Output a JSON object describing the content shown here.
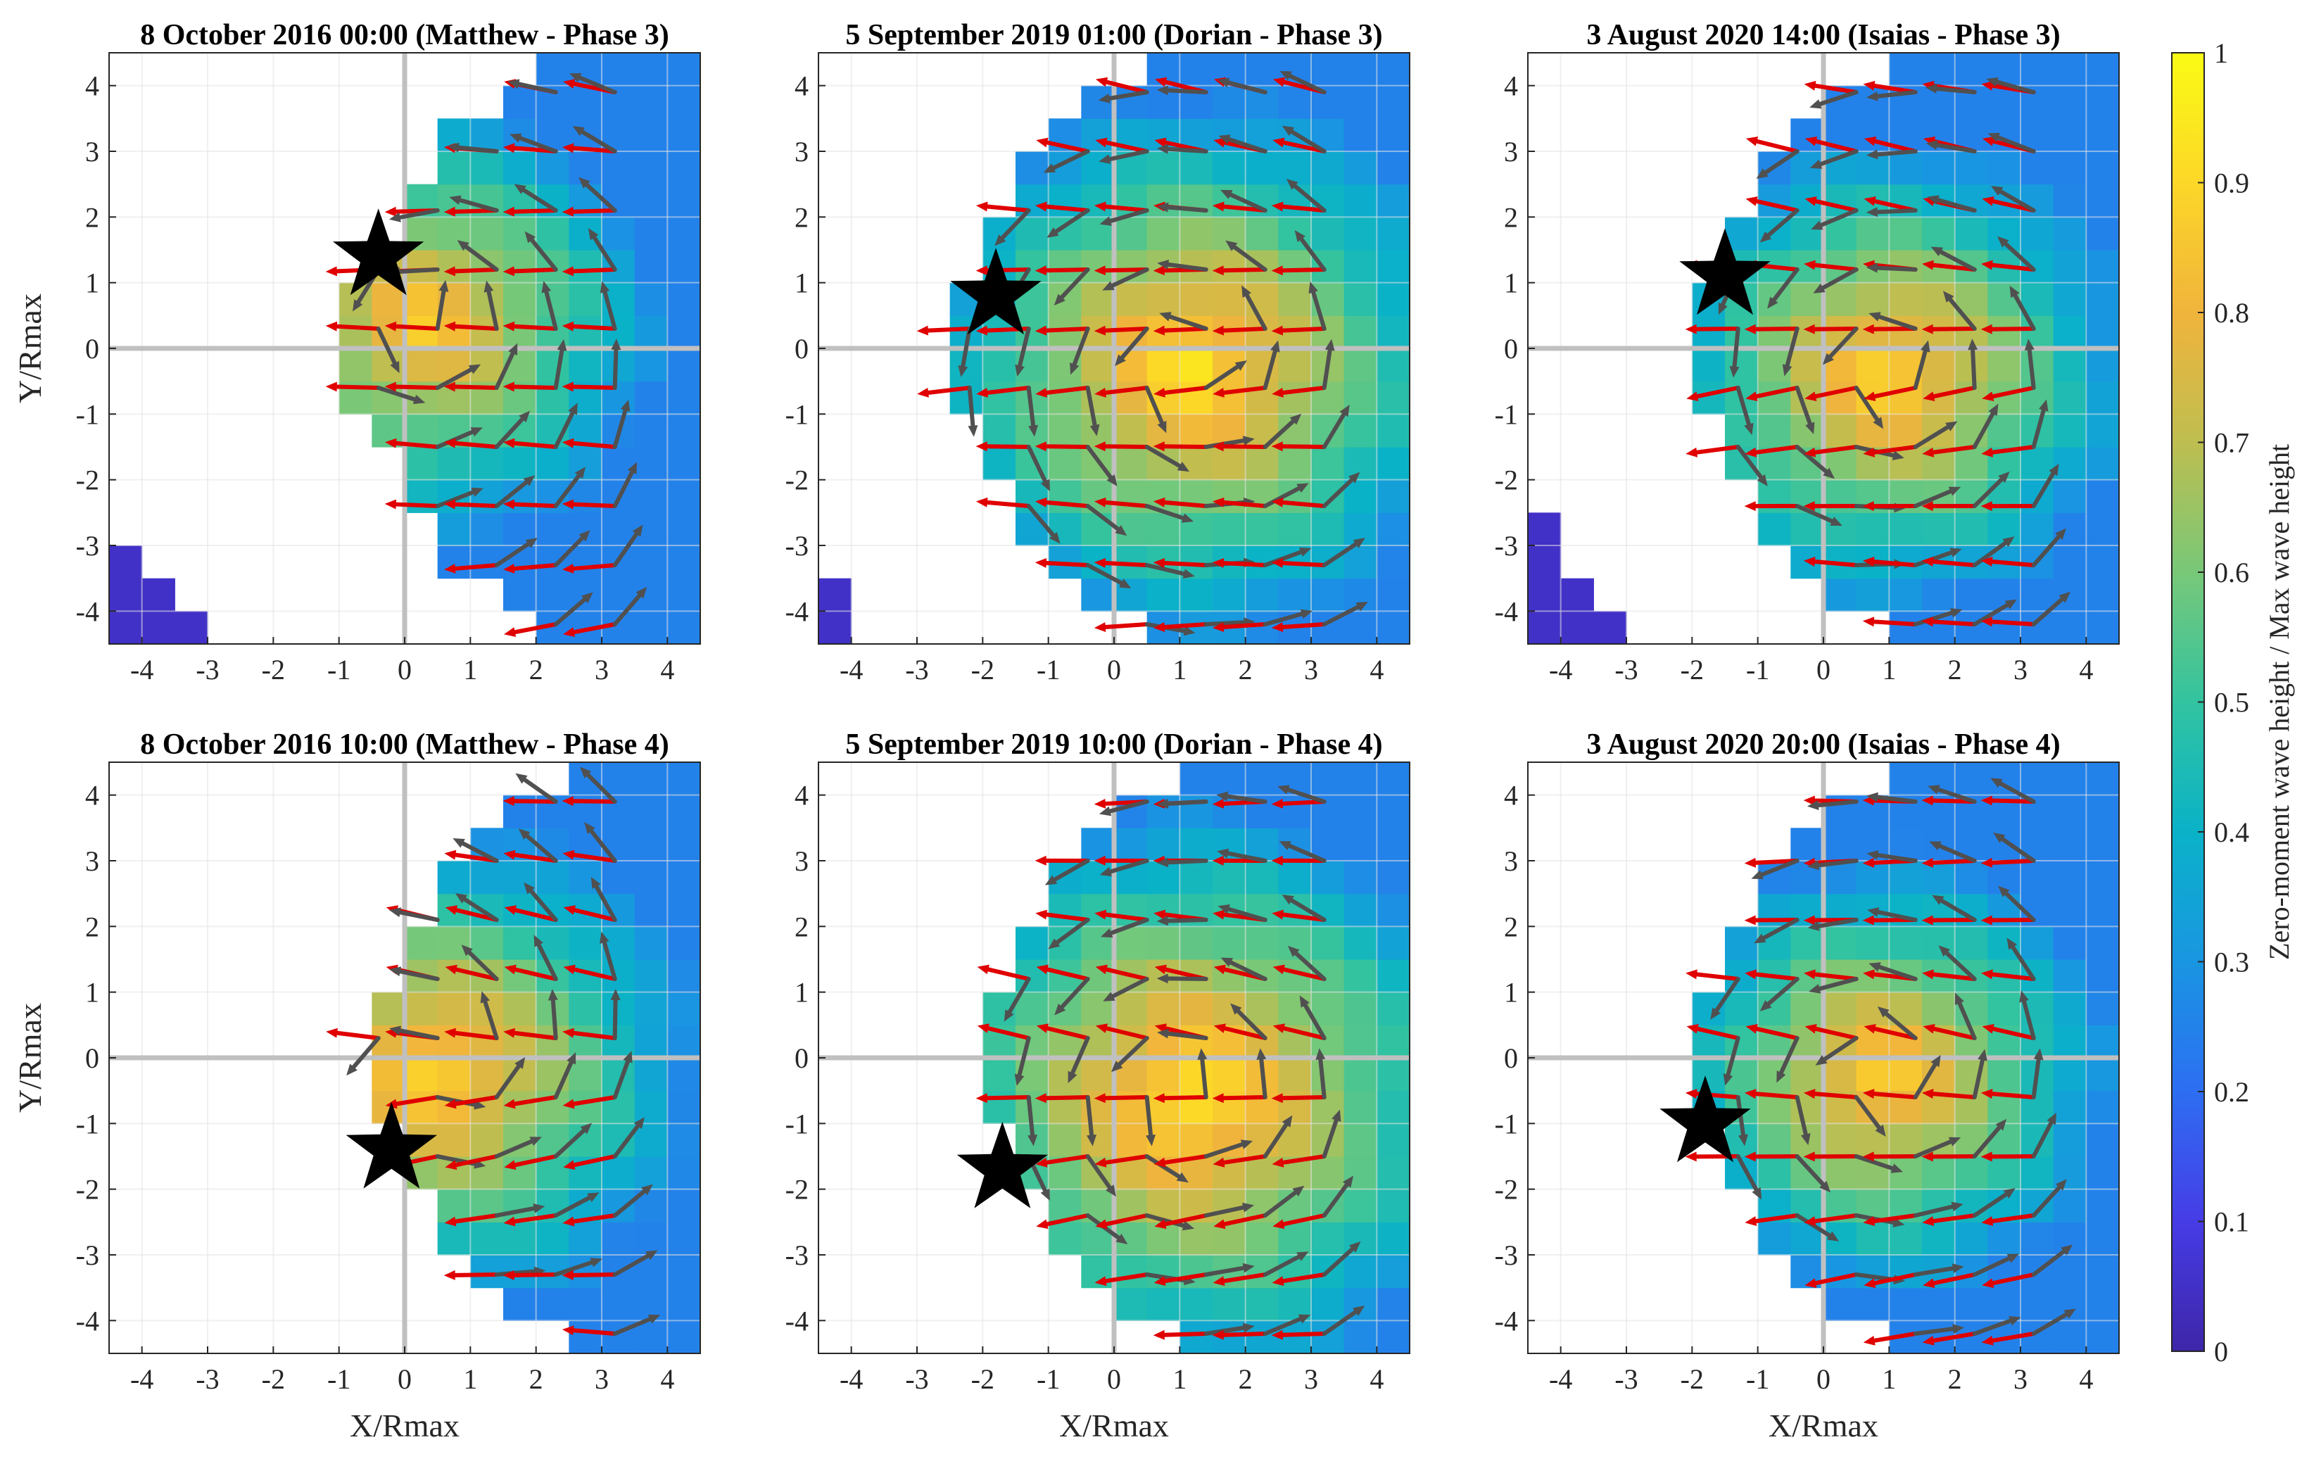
{
  "colors": {
    "tail_arrow": "#e00000",
    "head_arrow": "#505050",
    "center_line": "#c0c0c0",
    "grid": "#e4e4e4",
    "star": "#000000"
  },
  "chart_data": {
    "type": "heatmap",
    "grid": true,
    "xlabel": "X/Rmax",
    "ylabel": "Y/Rmax",
    "xlim": [
      -4.5,
      4.5
    ],
    "ylim": [
      -4.5,
      4.5
    ],
    "x_ticks": [
      "-4",
      "-3",
      "-2",
      "-1",
      "0",
      "1",
      "2",
      "3",
      "4"
    ],
    "y_ticks": [
      "4",
      "3",
      "2",
      "1",
      "0",
      "-1",
      "-2",
      "-3",
      "-4"
    ],
    "colorbar": {
      "label": "Zero-moment wave height / Max wave height",
      "range": [
        0,
        1
      ],
      "colormap": "parula",
      "ticks": [
        "0",
        "0.1",
        "0.2",
        "0.3",
        "0.4",
        "0.5",
        "0.6",
        "0.7",
        "0.8",
        "0.9",
        "1"
      ]
    },
    "panels": [
      {
        "title": "8 October 2016 00:00 (Matthew - Phase 3)",
        "star": [
          -0.4,
          1.4
        ],
        "peak": [
          0.3,
          0.4
        ],
        "peak_value": 0.88,
        "decay_rx": 3.2,
        "decay_ry": 3.0,
        "left_boundary": -1.2,
        "corner_blob": [
          [
            -4.5,
            -3.2
          ],
          [
            -4.0,
            -3.7
          ],
          [
            -3.5,
            -4.2
          ],
          [
            -3.0,
            -4.5
          ]
        ],
        "rotation": 0.3
      },
      {
        "title": "5 September 2019 01:00 (Dorian - Phase 3)",
        "star": [
          -1.8,
          0.8
        ],
        "peak": [
          1.2,
          -0.3
        ],
        "peak_value": 0.95,
        "decay_rx": 3.4,
        "decay_ry": 3.3,
        "left_boundary": -2.8,
        "corner_blob": [
          [
            -4.5,
            -3.7
          ],
          [
            -4.2,
            -4.5
          ]
        ],
        "rotation": 0.0
      },
      {
        "title": "3 August 2020 14:00 (Isaias - Phase 3)",
        "star": [
          -1.5,
          1.1
        ],
        "peak": [
          1.0,
          -0.4
        ],
        "peak_value": 0.92,
        "decay_rx": 3.1,
        "decay_ry": 3.0,
        "left_boundary": -2.3,
        "corner_blob": [
          [
            -4.5,
            -2.7
          ],
          [
            -4.0,
            -3.3
          ],
          [
            -3.5,
            -3.8
          ],
          [
            -3.0,
            -4.5
          ]
        ],
        "rotation": 0.2
      },
      {
        "title": "8 October 2016 10:00 (Matthew - Phase 4)",
        "star": [
          -0.2,
          -1.4
        ],
        "peak": [
          0.5,
          -0.2
        ],
        "peak_value": 0.92,
        "decay_rx": 3.3,
        "decay_ry": 3.1,
        "left_boundary": -0.8,
        "corner_blob": [],
        "rotation": -0.2
      },
      {
        "title": "5 September 2019 10:00 (Dorian - Phase 4)",
        "star": [
          -1.7,
          -1.7
        ],
        "peak": [
          1.2,
          -0.6
        ],
        "peak_value": 0.96,
        "decay_rx": 3.6,
        "decay_ry": 3.5,
        "left_boundary": -2.3,
        "corner_blob": [],
        "rotation": 0.1
      },
      {
        "title": "3 August 2020 20:00 (Isaias - Phase 4)",
        "star": [
          -1.8,
          -1.0
        ],
        "peak": [
          0.9,
          -0.3
        ],
        "peak_value": 0.9,
        "decay_rx": 3.0,
        "decay_ry": 2.9,
        "left_boundary": -2.3,
        "corner_blob": [],
        "rotation": 0.0
      }
    ]
  }
}
